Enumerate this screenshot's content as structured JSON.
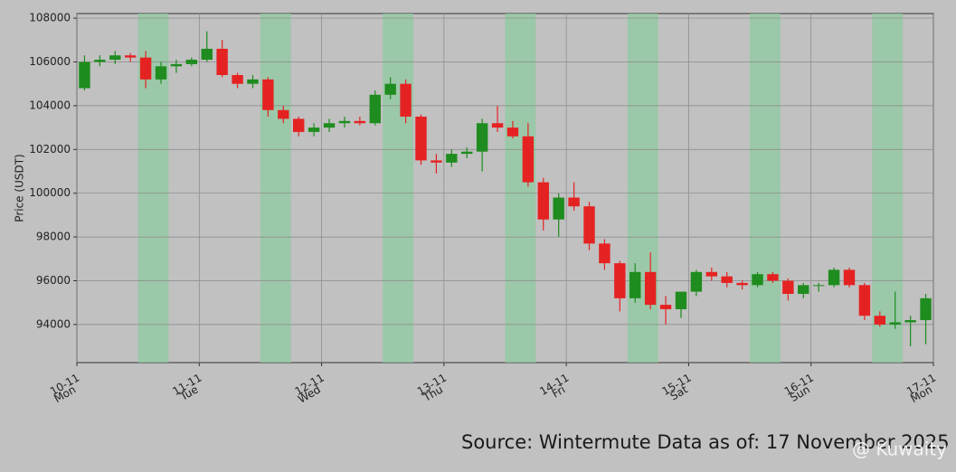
{
  "chart_data": {
    "type": "candlestick",
    "y_label": "Price (USDT)",
    "source": "Source: Wintermute  Data as of: 17 November 2025",
    "watermark": "@ Kuwaity",
    "xlim": [
      0,
      168
    ],
    "xticks": [
      {
        "value": 0,
        "label": "10-11",
        "day": "Mon"
      },
      {
        "value": 24,
        "label": "11-11",
        "day": "Tue"
      },
      {
        "value": 48,
        "label": "12-11",
        "day": "Wed"
      },
      {
        "value": 72,
        "label": "13-11",
        "day": "Thu"
      },
      {
        "value": 96,
        "label": "14-11",
        "day": "Fri"
      },
      {
        "value": 120,
        "label": "15-11",
        "day": "Sat"
      },
      {
        "value": 144,
        "label": "16-11",
        "day": "Sun"
      },
      {
        "value": 168,
        "label": "17-11",
        "day": "Mon"
      }
    ],
    "ylim": [
      92260,
      108210
    ],
    "yticks": [
      94000,
      96000,
      98000,
      100000,
      102000,
      104000,
      106000,
      108000
    ],
    "grid": true,
    "up_color": "#1e8c1e",
    "down_color": "#e52222",
    "highlight_color": "#8fc9a0",
    "highlight_periods": [
      [
        12,
        18
      ],
      [
        36,
        42
      ],
      [
        60,
        66
      ],
      [
        84,
        90
      ],
      [
        108,
        114
      ],
      [
        132,
        138
      ],
      [
        156,
        162
      ]
    ],
    "x": [
      0,
      3,
      6,
      9,
      12,
      15,
      18,
      21,
      24,
      27,
      30,
      33,
      36,
      39,
      42,
      45,
      48,
      51,
      54,
      57,
      60,
      63,
      66,
      69,
      72,
      75,
      78,
      81,
      84,
      87,
      90,
      93,
      96,
      99,
      102,
      105,
      108,
      111,
      114,
      117,
      120,
      123,
      126,
      129,
      132,
      135,
      138,
      141,
      144,
      147,
      150,
      153,
      156,
      159,
      162,
      165
    ],
    "open": [
      104800,
      106000,
      106100,
      106300,
      106200,
      105200,
      105800,
      105900,
      106100,
      106600,
      105400,
      105000,
      105200,
      103800,
      103400,
      102800,
      103000,
      103200,
      103300,
      103200,
      104500,
      105000,
      103500,
      101500,
      101400,
      101800,
      101900,
      103200,
      103000,
      102600,
      100500,
      98800,
      99800,
      99400,
      97700,
      96800,
      95200,
      96400,
      94900,
      94700,
      95500,
      96400,
      96200,
      95900,
      95800,
      96300,
      96000,
      95400,
      95800,
      95800,
      96500,
      95800,
      94400,
      94000,
      94100,
      94200
    ],
    "high": [
      106300,
      106300,
      106500,
      106400,
      106500,
      106000,
      106100,
      106200,
      107400,
      107000,
      105500,
      105400,
      105300,
      104000,
      103500,
      103200,
      103400,
      103500,
      103500,
      104700,
      105300,
      105200,
      103600,
      101800,
      102000,
      102100,
      103400,
      104000,
      103300,
      103200,
      100700,
      100000,
      100500,
      99600,
      97900,
      96900,
      96800,
      97300,
      95300,
      95500,
      96500,
      96600,
      96400,
      96000,
      96400,
      96400,
      96100,
      95900,
      95900,
      96600,
      96600,
      95900,
      94600,
      95500,
      94400,
      95400
    ],
    "low": [
      104700,
      105800,
      105900,
      106000,
      104800,
      105000,
      105500,
      105800,
      106000,
      105300,
      104800,
      104800,
      103500,
      103200,
      102600,
      102600,
      102800,
      103000,
      103100,
      103100,
      104300,
      103200,
      101300,
      100900,
      101200,
      101600,
      101000,
      102800,
      102500,
      100300,
      98300,
      98000,
      99200,
      97400,
      96500,
      94600,
      95000,
      94700,
      94000,
      94300,
      95300,
      96000,
      95700,
      95600,
      95700,
      95900,
      95100,
      95200,
      95500,
      95700,
      95700,
      94200,
      93900,
      93800,
      93000,
      93100
    ],
    "close": [
      106000,
      106100,
      106300,
      106200,
      105200,
      105800,
      105900,
      106100,
      106600,
      105400,
      105000,
      105200,
      103800,
      103400,
      102800,
      103000,
      103200,
      103300,
      103200,
      104500,
      105000,
      103500,
      101500,
      101400,
      101800,
      101900,
      103200,
      103000,
      102600,
      100500,
      98800,
      99800,
      99400,
      97700,
      96800,
      95200,
      96400,
      94900,
      94700,
      95500,
      96400,
      96200,
      95900,
      95800,
      96300,
      96000,
      95400,
      95800,
      95800,
      96500,
      95800,
      94400,
      94000,
      94100,
      94200,
      95200
    ]
  }
}
